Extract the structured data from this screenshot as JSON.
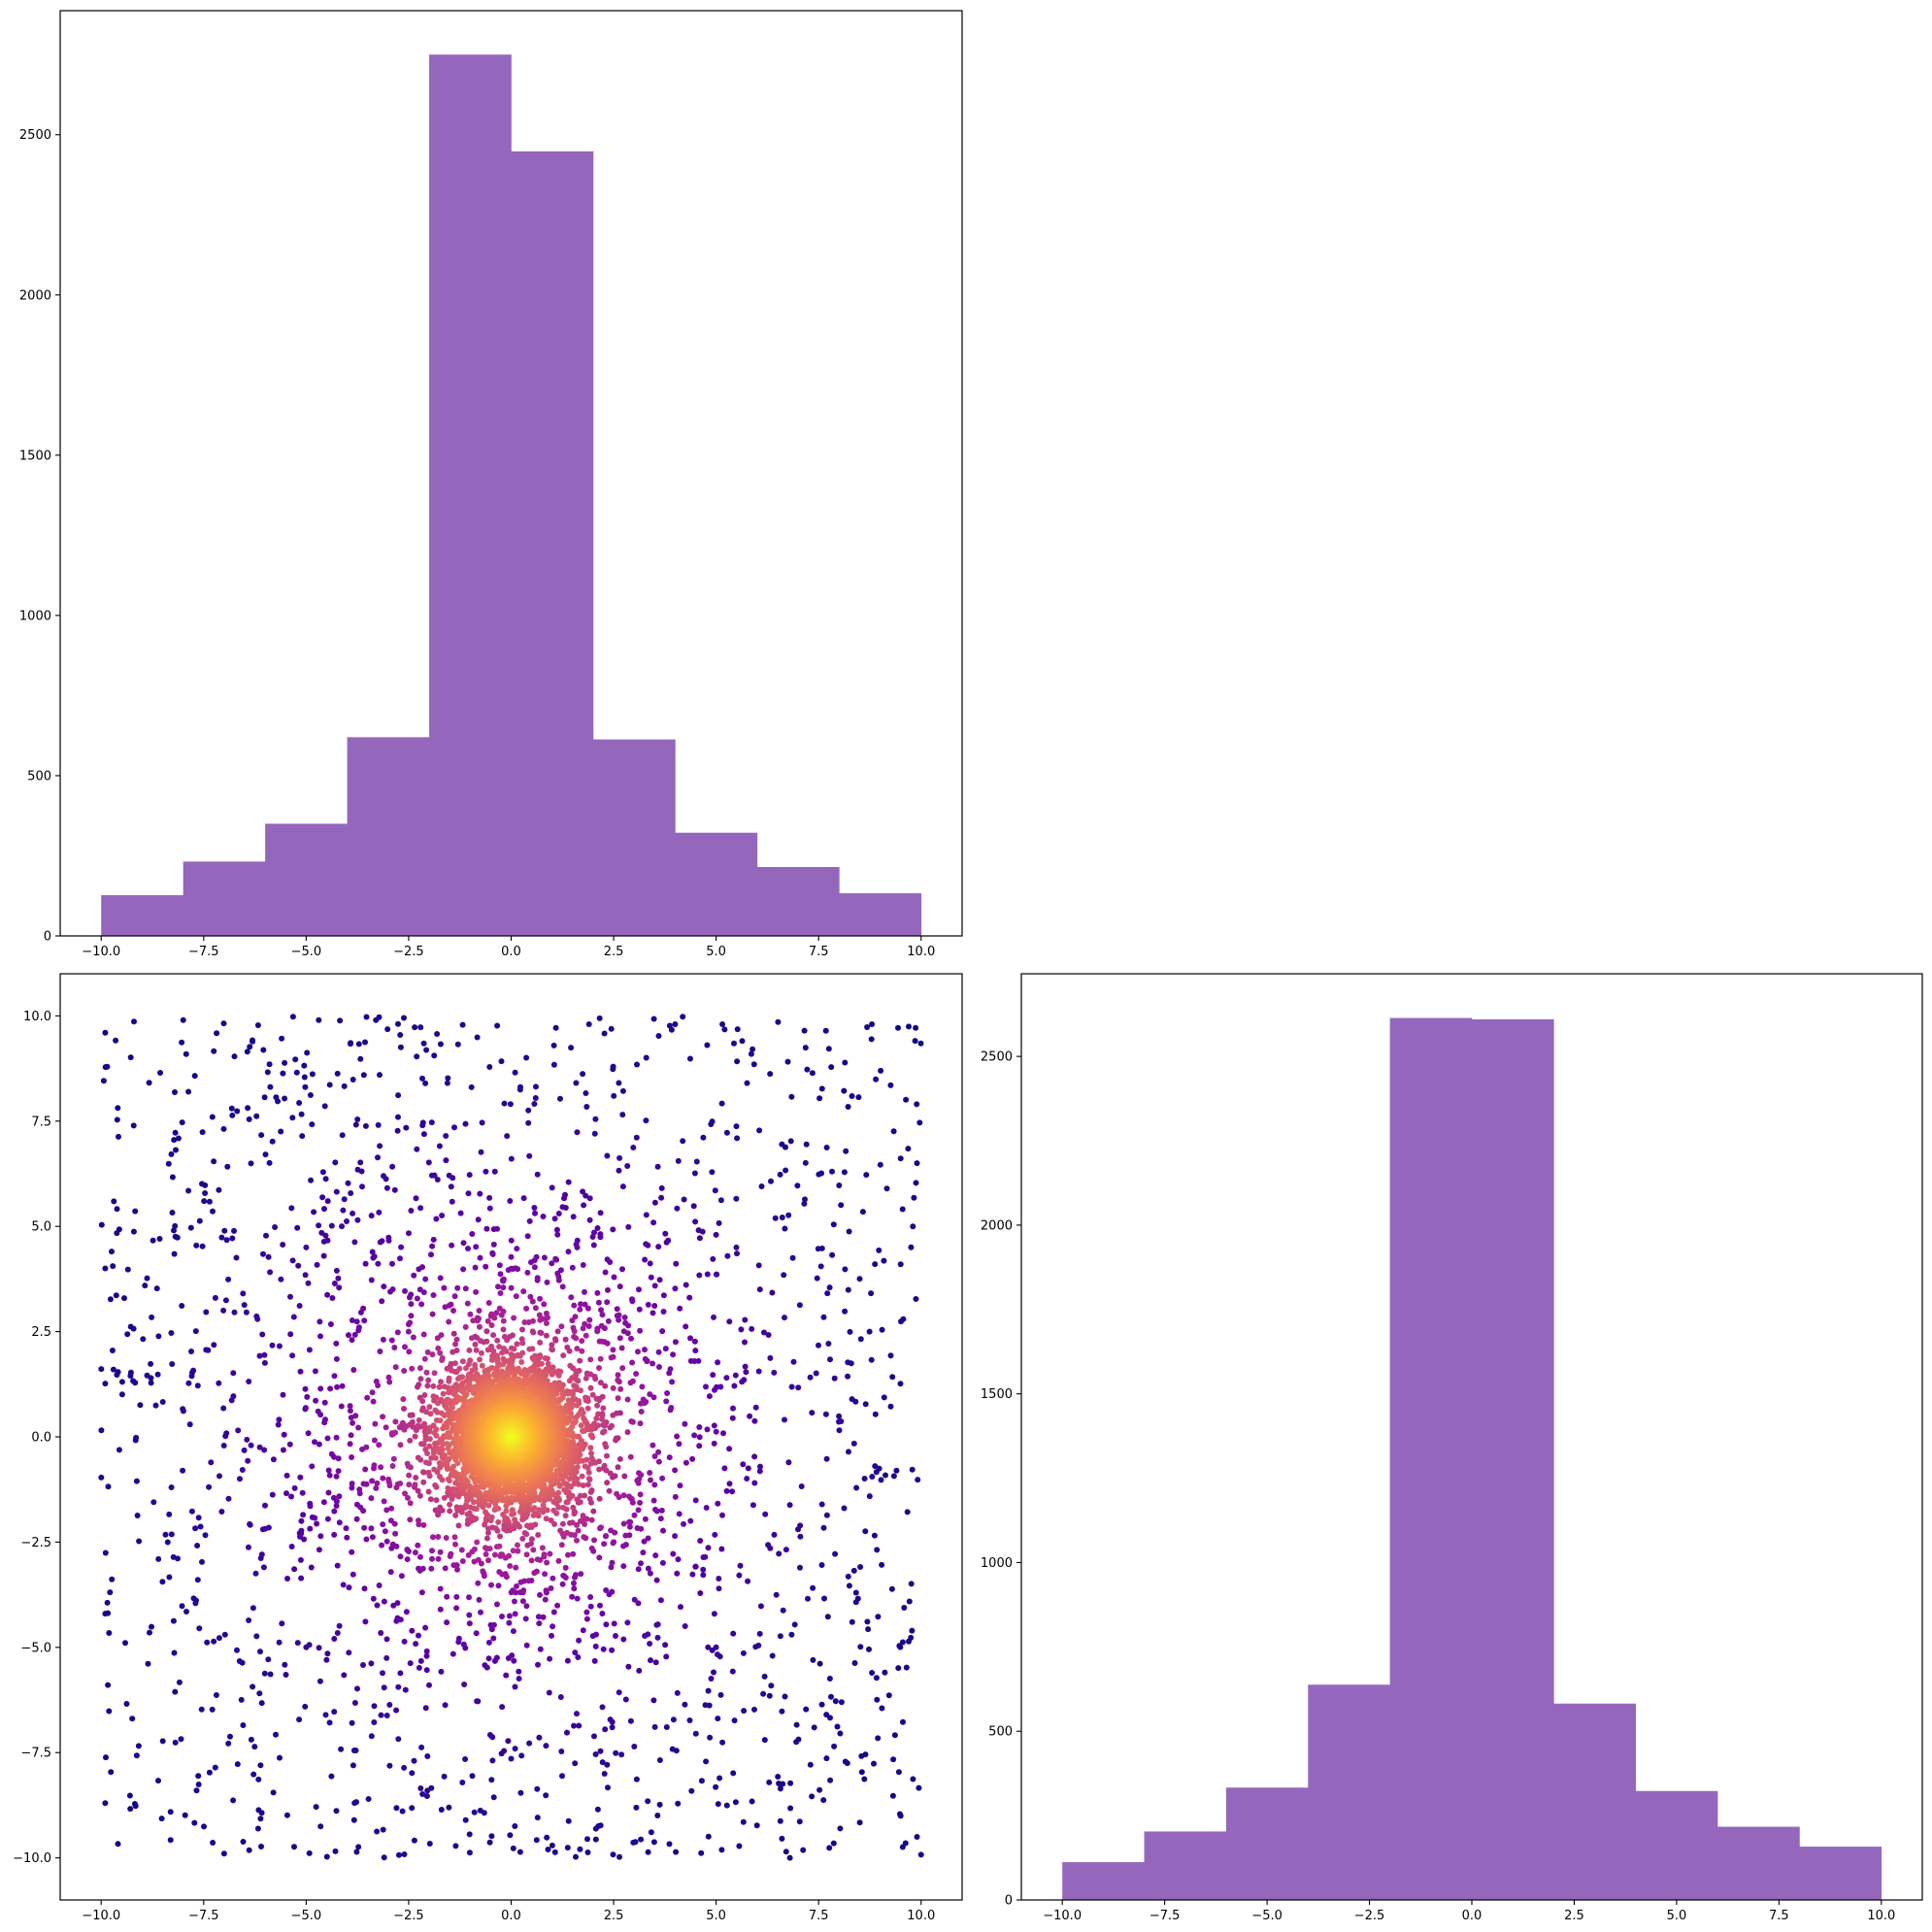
{
  "chart_data": [
    {
      "type": "bar",
      "panel": "top-left",
      "histogram": true,
      "bin_edges": [
        -10,
        -8,
        -6,
        -4,
        -2,
        0,
        2,
        4,
        6,
        8,
        10
      ],
      "values": [
        127,
        232,
        350,
        620,
        2750,
        2448,
        613,
        322,
        215,
        133
      ],
      "color": "#9467bd",
      "xlim": [
        -11,
        11
      ],
      "ylim": [
        0,
        2887
      ],
      "xticks": [
        -10.0,
        -7.5,
        -5.0,
        -2.5,
        0.0,
        2.5,
        5.0,
        7.5,
        10.0
      ],
      "yticks": [
        0,
        500,
        1000,
        1500,
        2000,
        2500
      ],
      "xtick_labels": [
        "−10.0",
        "−7.5",
        "−5.0",
        "−2.5",
        "0.0",
        "2.5",
        "5.0",
        "7.5",
        "10.0"
      ],
      "ytick_labels": [
        "0",
        "500",
        "1000",
        "1500",
        "2000",
        "2500"
      ],
      "grid": false
    },
    {
      "type": "scatter",
      "panel": "bottom-left",
      "colormap": "plasma",
      "colormap_stops": [
        "#0d0887",
        "#5c01a6",
        "#9c179e",
        "#cc4778",
        "#ed7953",
        "#fdb42f",
        "#f0f921"
      ],
      "color_encodes": "point density",
      "points_sample": [
        [
          -9.9,
          9.6
        ],
        [
          -8.0,
          9.9
        ],
        [
          -3.3,
          9.9
        ],
        [
          1.9,
          9.8
        ],
        [
          4.0,
          9.8
        ],
        [
          8.8,
          9.8
        ],
        [
          -9.9,
          4.0
        ],
        [
          -9.7,
          1.6
        ],
        [
          9.9,
          6.5
        ],
        [
          9.8,
          5.0
        ],
        [
          9.5,
          4.1
        ],
        [
          9.4,
          -0.8
        ],
        [
          -9.9,
          -4.2
        ],
        [
          -9.9,
          -8.7
        ],
        [
          -7.0,
          -9.9
        ],
        [
          0.9,
          -9.8
        ],
        [
          6.8,
          -10.0
        ],
        [
          9.9,
          -9.5
        ],
        [
          -5.0,
          4.5
        ],
        [
          5.0,
          4.8
        ],
        [
          -5.0,
          -5.0
        ],
        [
          5.0,
          -5.0
        ],
        [
          -2.5,
          2.5
        ],
        [
          2.5,
          -2.5
        ]
      ],
      "xlim": [
        -11,
        11
      ],
      "ylim": [
        -11,
        11
      ],
      "xticks": [
        -10.0,
        -7.5,
        -5.0,
        -2.5,
        0.0,
        2.5,
        5.0,
        7.5,
        10.0
      ],
      "yticks": [
        -10.0,
        -7.5,
        -5.0,
        -2.5,
        0.0,
        2.5,
        5.0,
        7.5,
        10.0
      ],
      "xtick_labels": [
        "−10.0",
        "−7.5",
        "−5.0",
        "−2.5",
        "0.0",
        "2.5",
        "5.0",
        "7.5",
        "10.0"
      ],
      "ytick_labels": [
        "−10.0",
        "−7.5",
        "−5.0",
        "−2.5",
        "0.0",
        "2.5",
        "5.0",
        "7.5",
        "10.0"
      ],
      "grid": false
    },
    {
      "type": "bar",
      "panel": "bottom-right",
      "histogram": true,
      "bin_edges": [
        -10,
        -8,
        -6,
        -4,
        -2,
        0,
        2,
        4,
        6,
        8,
        10
      ],
      "values": [
        112,
        203,
        333,
        638,
        2614,
        2610,
        582,
        323,
        217,
        158
      ],
      "color": "#9467bd",
      "xlim": [
        -11,
        11
      ],
      "ylim": [
        0,
        2745
      ],
      "xticks": [
        -10.0,
        -7.5,
        -5.0,
        -2.5,
        0.0,
        2.5,
        5.0,
        7.5,
        10.0
      ],
      "yticks": [
        0,
        500,
        1000,
        1500,
        2000,
        2500
      ],
      "xtick_labels": [
        "−10.0",
        "−7.5",
        "−5.0",
        "−2.5",
        "0.0",
        "2.5",
        "5.0",
        "7.5",
        "10.0"
      ],
      "ytick_labels": [
        "0",
        "500",
        "1000",
        "1500",
        "2000",
        "2500"
      ],
      "grid": false
    }
  ]
}
